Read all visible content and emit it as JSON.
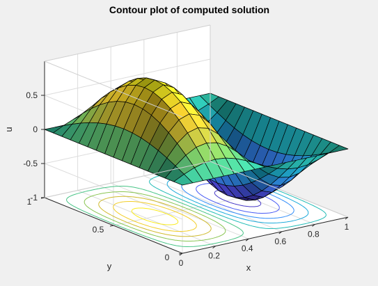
{
  "chart_data": {
    "type": "surface",
    "title": "Contour plot of computed solution",
    "xlabel": "x",
    "ylabel": "y",
    "zlabel": "u",
    "function": "u(x,y) = sin(2*pi*x) * sin(pi*y)",
    "grid_points": 17,
    "xlim": [
      0,
      1
    ],
    "ylim": [
      0,
      1
    ],
    "zlim": [
      -1,
      1
    ],
    "contour_plane": -1,
    "contour_levels": [
      -0.9,
      -0.7,
      -0.5,
      -0.3,
      -0.1,
      0.1,
      0.3,
      0.5,
      0.7,
      0.9
    ],
    "colormap": [
      "#3e26a8",
      "#4d4ef3",
      "#2f8cfa",
      "#16b1d3",
      "#26c2a2",
      "#78c85c",
      "#cfba2b",
      "#fbd225",
      "#f9fb15"
    ],
    "x_ticks": [
      0,
      0.2,
      0.4,
      0.6,
      0.8,
      1
    ],
    "x_tick_labels": [
      "0",
      "0.2",
      "0.4",
      "0.6",
      "0.8",
      "1"
    ],
    "y_ticks": [
      0,
      0.5,
      1
    ],
    "y_tick_labels": [
      "0",
      "0.5",
      "1"
    ],
    "z_ticks": [
      -1,
      -0.5,
      0,
      0.5
    ],
    "z_tick_labels": [
      "-1",
      "-0.5",
      "0",
      "0.5"
    ],
    "lighting": true,
    "grid": true
  }
}
